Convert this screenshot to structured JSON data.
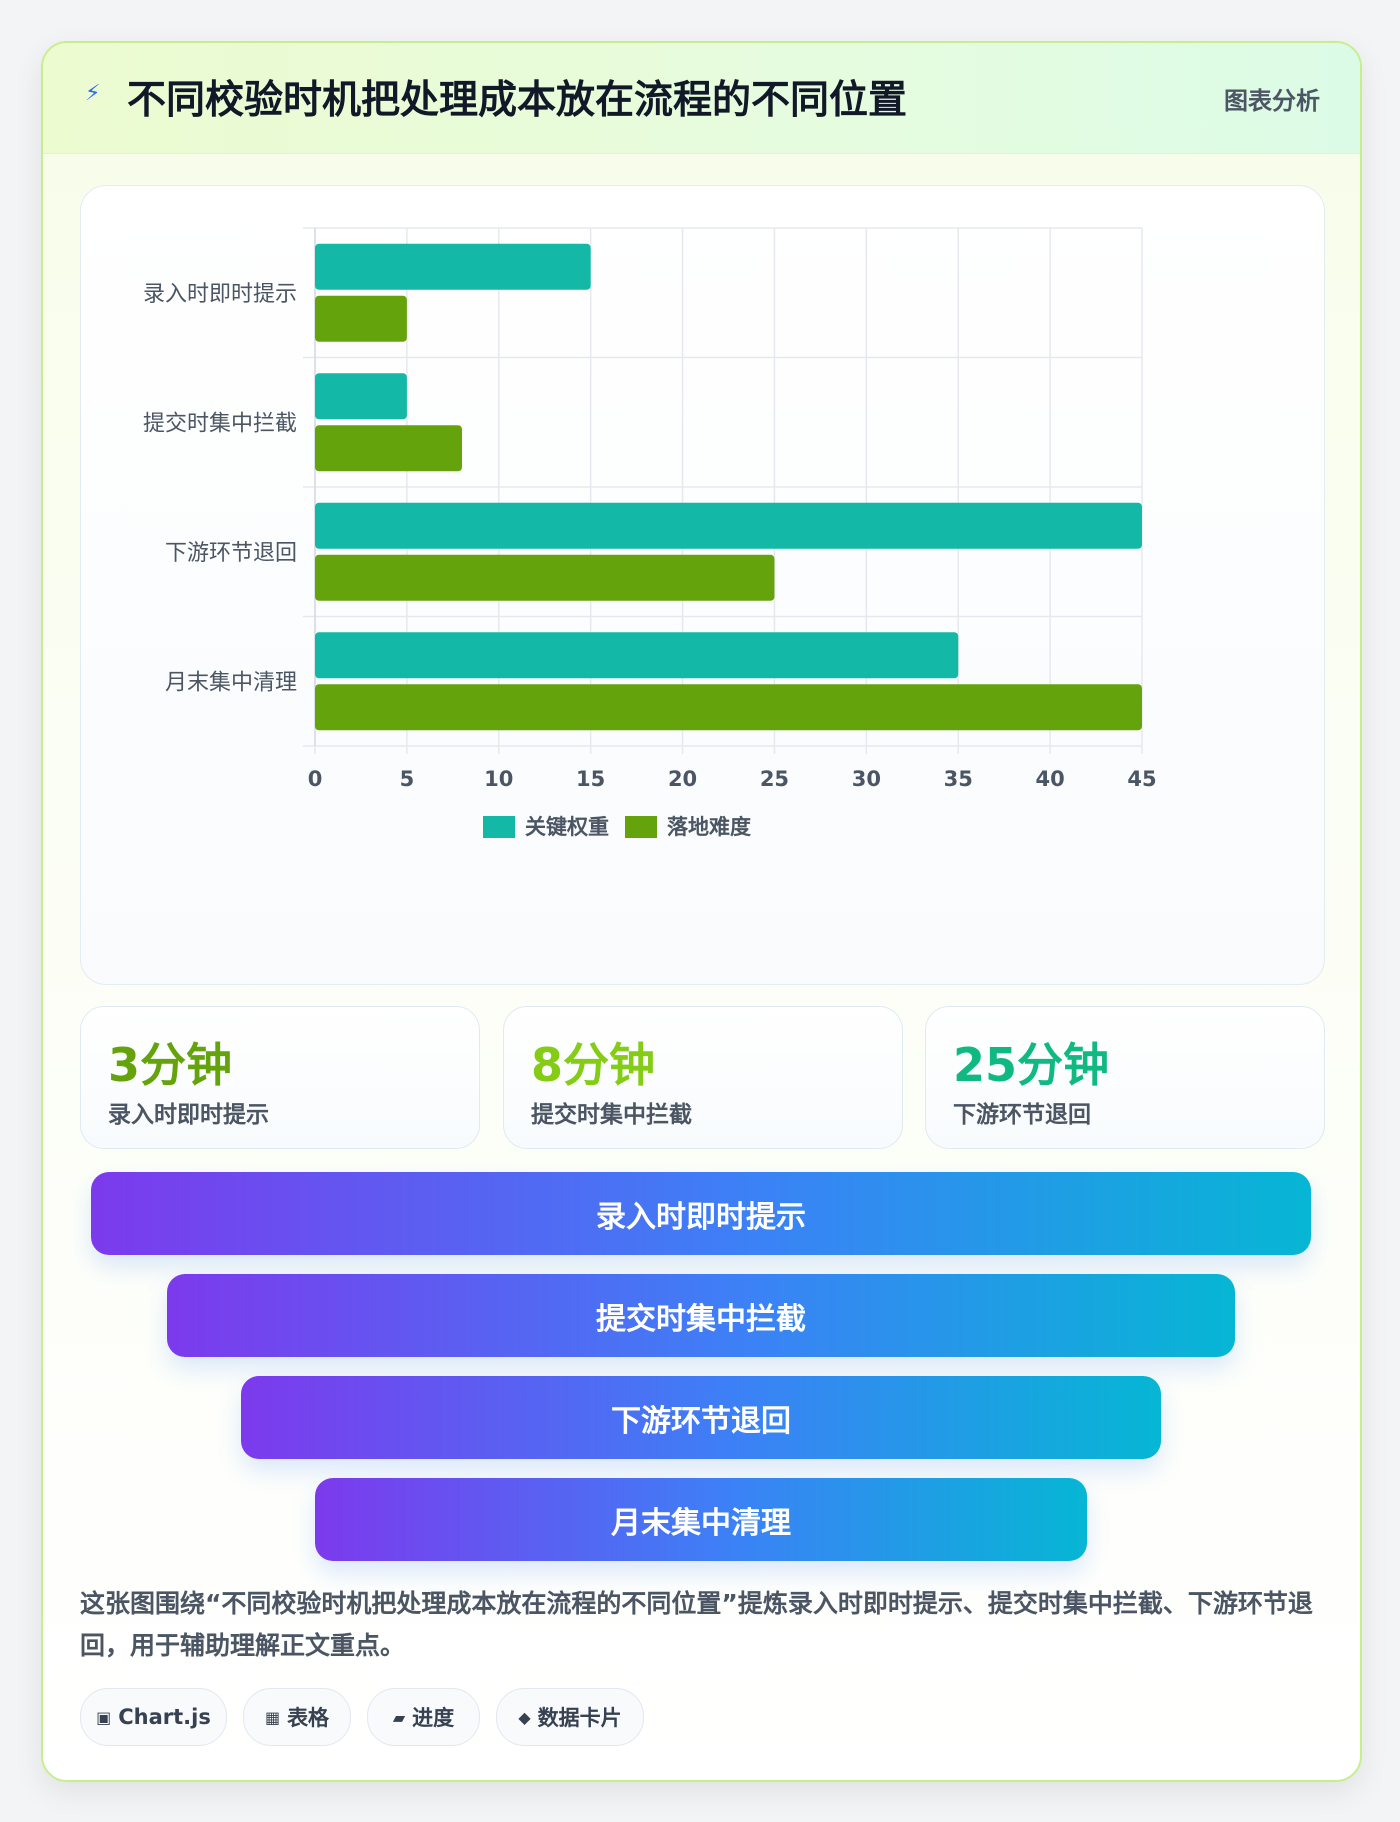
{
  "header": {
    "icon": "bolt-icon",
    "title": "不同校验时机把处理成本放在流程的不同位置",
    "tag": "图表分析"
  },
  "chart_data": {
    "type": "bar",
    "orientation": "horizontal",
    "categories": [
      "录入时即时提示",
      "提交时集中拦截",
      "下游环节退回",
      "月末集中清理"
    ],
    "series": [
      {
        "name": "关键权重",
        "values": [
          15,
          5,
          45,
          35
        ],
        "color": "#14b8a6"
      },
      {
        "name": "落地难度",
        "values": [
          5,
          8,
          25,
          45
        ],
        "color": "#65a30d"
      }
    ],
    "xlim": [
      0,
      45
    ],
    "xticks": [
      0,
      5,
      10,
      15,
      20,
      25,
      30,
      35,
      40,
      45
    ],
    "grid": true,
    "legend": "bottom"
  },
  "stats": [
    {
      "value": "3分钟",
      "label": "录入时即时提示",
      "color": "#65a30d"
    },
    {
      "value": "8分钟",
      "label": "提交时集中拦截",
      "color": "#84cc16"
    },
    {
      "value": "25分钟",
      "label": "下游环节退回",
      "color": "#10b981"
    }
  ],
  "funnel": [
    "录入时即时提示",
    "提交时集中拦截",
    "下游环节退回",
    "月末集中清理"
  ],
  "description": "这张图围绕“不同校验时机把处理成本放在流程的不同位置”提炼录入时即时提示、提交时集中拦截、下游环节退回，用于辅助理解正文重点。",
  "chips": [
    {
      "icon": "▣",
      "label": "Chart.js"
    },
    {
      "icon": "▦",
      "label": "表格"
    },
    {
      "icon": "▰",
      "label": "进度"
    },
    {
      "icon": "◆",
      "label": "数据卡片"
    }
  ]
}
